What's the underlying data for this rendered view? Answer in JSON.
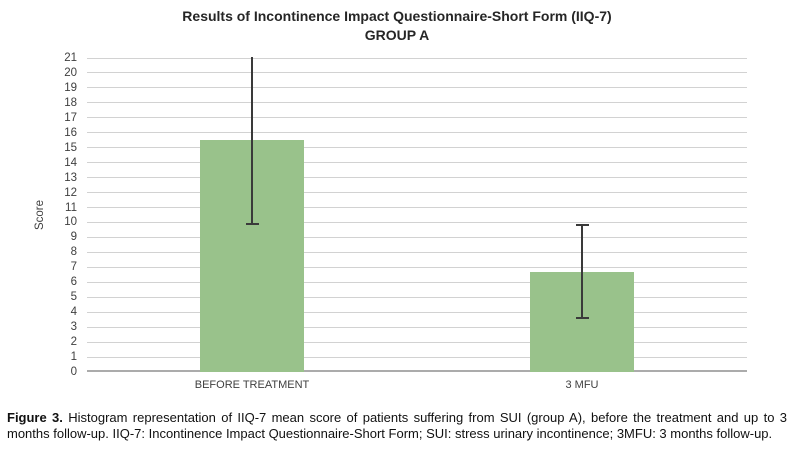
{
  "chart_data": {
    "type": "bar",
    "title": "Results of Incontinence Impact Questionnaire-Short Form (IIQ-7)",
    "subtitle": "GROUP A",
    "categories": [
      "BEFORE TREATMENT",
      "3 MFU"
    ],
    "series": [
      {
        "name": "IIQ-7 mean score",
        "values": [
          15.5,
          6.7
        ],
        "error_low": [
          9.9,
          3.6
        ],
        "error_high": [
          21.1,
          9.8
        ]
      }
    ],
    "xlabel": "",
    "ylabel": "Score",
    "ylim": [
      0,
      21
    ],
    "ytick_step": 1,
    "grid": true,
    "legend": false,
    "colors": {
      "bar_fill": "#99C28B",
      "error_bar": "#3A3A3A",
      "gridline": "#D2D2D2",
      "axis_line": "#ABABAB",
      "text": "#3F3F3F"
    }
  },
  "caption": {
    "label": "Figure 3.",
    "text": " Histogram representation of IIQ-7 mean score of patients suffering from SUI (group A), before the treatment and up to 3 months follow-up. IIQ-7: Incontinence Impact Questionnaire-Short Form; SUI: stress urinary incontinence; 3MFU: 3 months follow-up."
  }
}
